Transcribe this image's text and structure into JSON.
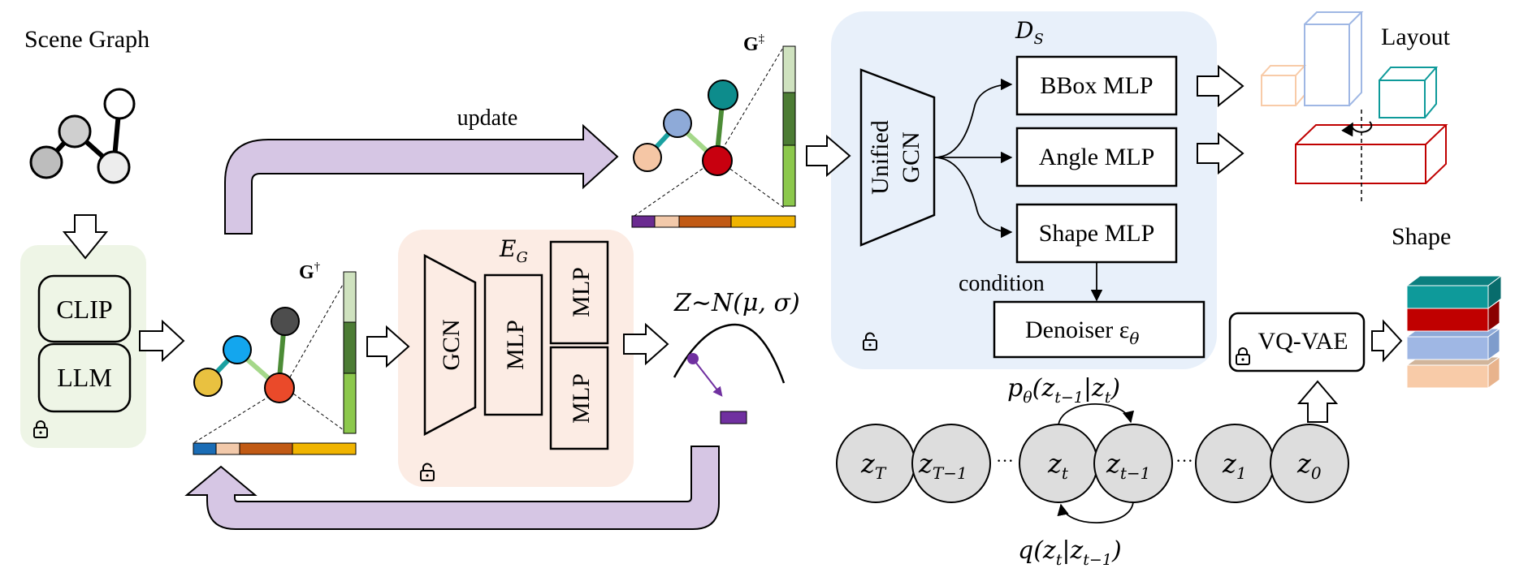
{
  "labels": {
    "scene_graph": "Scene Graph",
    "clip": "CLIP",
    "llm": "LLM",
    "g_dagger": "G",
    "g_dagger_sup": "†",
    "g_ddagger": "G",
    "g_ddagger_sup": "‡",
    "update": "update",
    "encoder": "E",
    "encoder_sub": "G",
    "gcn": "GCN",
    "mlp": "MLP",
    "latent": "Z∼N(μ, σ)",
    "decoder": "D",
    "decoder_sub": "S",
    "unified_gcn_1": "Unified",
    "unified_gcn_2": "GCN",
    "bbox_mlp": "BBox MLP",
    "angle_mlp": "Angle MLP",
    "shape_mlp": "Shape MLP",
    "condition": "condition",
    "denoiser": "Denoiser ε",
    "denoiser_sub": "θ",
    "layout": "Layout",
    "shape": "Shape",
    "vqvae": "VQ-VAE",
    "p_theta": "p",
    "p_theta_sub": "θ",
    "p_theta_args": "(z",
    "p_theta_args_sub": "t−1",
    "p_theta_args_rest": "|z",
    "p_theta_args_sub2": "t",
    "q_dist": "q(z",
    "q_sub1": "t",
    "q_mid": "|z",
    "q_sub2": "t−1",
    "chain": [
      {
        "main": "z",
        "sub": "T"
      },
      {
        "main": "z",
        "sub": "T−1"
      },
      {
        "main": "z",
        "sub": "t"
      },
      {
        "main": "z",
        "sub": "t−1"
      },
      {
        "main": "z",
        "sub": "1"
      },
      {
        "main": "z",
        "sub": "0"
      }
    ],
    "ellipsis": "···"
  },
  "colors": {
    "green_panel": "#eef5e6",
    "peach_panel": "#fcece4",
    "blue_panel": "#e8f0fa",
    "purple_arrow": "#d6c6e4",
    "node_gray": "#c8c8c8",
    "node_dark": "#4d4d4d",
    "node_blue": "#13a6ee",
    "node_yellow": "#e9c140",
    "node_red": "#ea4a2a",
    "node_teal": "#0d8c8c",
    "node_lavender": "#8eaad8",
    "node_peach": "#f5c6a5",
    "node_crimson": "#c8000f",
    "edge_teal": "#1aa1a1",
    "edge_lightgreen": "#a5d88a",
    "edge_green": "#4c8c36",
    "bar_light": "#cfe2bf",
    "bar_mid": "#4c7c34",
    "bar_bright": "#8cc84c",
    "strip_purple": "#6a2b90",
    "strip_peach": "#f2c9aa",
    "strip_brown": "#c15a14",
    "strip_gold": "#f0b400",
    "strip_blue": "#1a6cb5",
    "box_teal": "#0e9a9a",
    "box_red": "#c00000",
    "box_blue": "#9fb7e4",
    "box_peach": "#f8cba8",
    "box_tan": "#d1b59b",
    "latent_dot": "#7030a0"
  }
}
